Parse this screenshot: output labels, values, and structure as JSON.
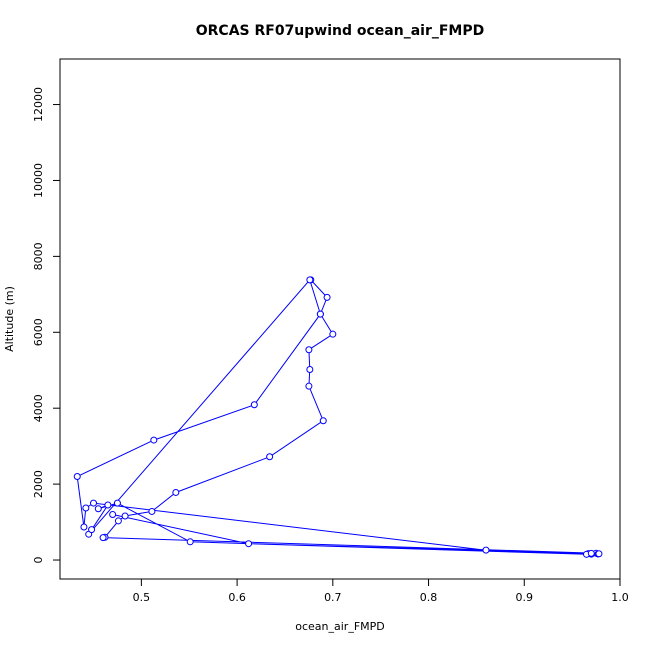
{
  "chart_data": {
    "type": "line",
    "title": "ORCAS RF07upwind ocean_air_FMPD",
    "xlabel": "ocean_air_FMPD",
    "ylabel": "Altitude (m)",
    "xlim": [
      0.415,
      1.0
    ],
    "ylim": [
      -500,
      13200
    ],
    "x_ticks": [
      0.5,
      0.6,
      0.7,
      0.8,
      0.9,
      1.0
    ],
    "x_tick_labels": [
      "0.5",
      "0.6",
      "0.7",
      "0.8",
      "0.9",
      "1.0"
    ],
    "y_ticks": [
      0,
      2000,
      4000,
      6000,
      8000,
      10000,
      12000
    ],
    "y_tick_labels": [
      "0",
      "2000",
      "4000",
      "6000",
      "8000",
      "10000",
      "12000"
    ],
    "grid": false,
    "series_color": "#0000ff",
    "marker": "open-circle",
    "series": [
      {
        "x": [
          0.677,
          0.694,
          0.687,
          0.7,
          0.675,
          0.676,
          0.675,
          0.69,
          0.634,
          0.536,
          0.511,
          0.483,
          0.476,
          0.462,
          0.46,
          0.975,
          0.977,
          0.97,
          0.967,
          0.86,
          0.45,
          0.442,
          0.44,
          0.433,
          0.513,
          0.618,
          0.687,
          0.676,
          0.445,
          0.448,
          0.465,
          0.455,
          0.475,
          0.551,
          0.965,
          0.97,
          0.978,
          0.612,
          0.47
        ],
        "y": [
          7380,
          6920,
          6480,
          5950,
          5540,
          5020,
          4580,
          3670,
          2720,
          1780,
          1280,
          1160,
          1030,
          600,
          590,
          180,
          160,
          155,
          170,
          260,
          1500,
          1370,
          870,
          2200,
          3160,
          4090,
          6480,
          7380,
          680,
          800,
          1450,
          1350,
          1500,
          480,
          150,
          175,
          165,
          430,
          1200
        ]
      }
    ]
  }
}
